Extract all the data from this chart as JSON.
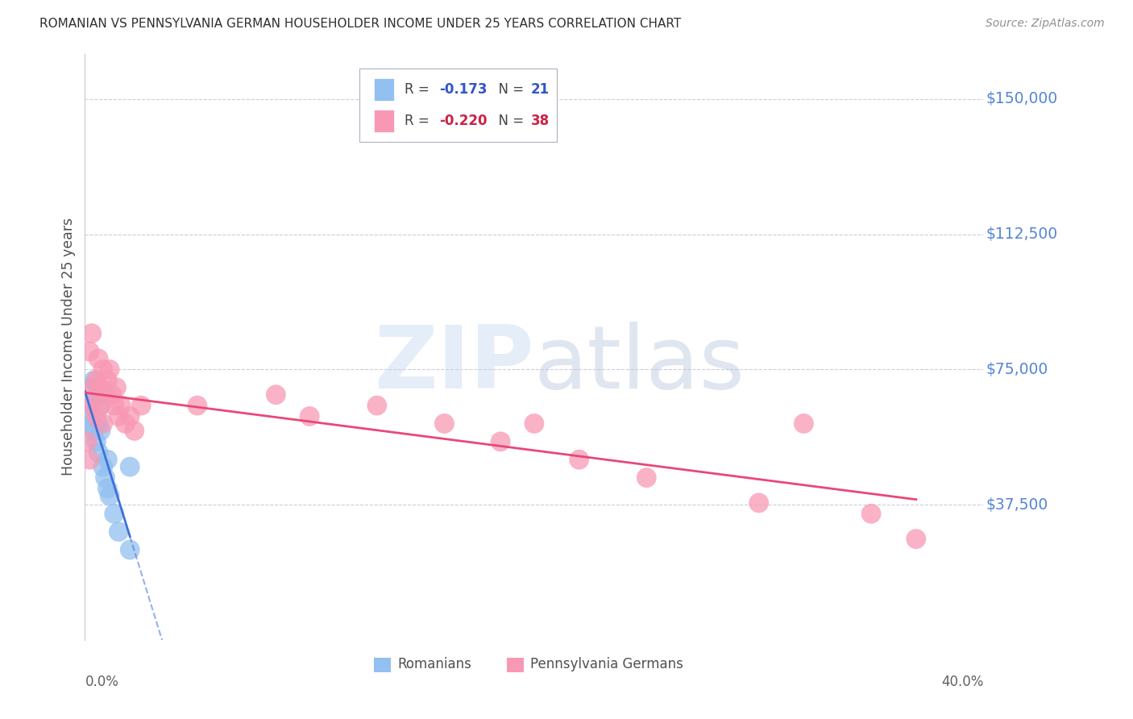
{
  "title": "ROMANIAN VS PENNSYLVANIA GERMAN HOUSEHOLDER INCOME UNDER 25 YEARS CORRELATION CHART",
  "source": "Source: ZipAtlas.com",
  "ylabel": "Householder Income Under 25 years",
  "ytick_labels": [
    "$150,000",
    "$112,500",
    "$75,000",
    "$37,500"
  ],
  "ytick_values": [
    150000,
    112500,
    75000,
    37500
  ],
  "ylim": [
    0,
    162500
  ],
  "xlim": [
    0.0,
    0.4
  ],
  "romanian_color": "#92c0f0",
  "penn_german_color": "#f898b4",
  "romanian_line_color": "#4070d8",
  "penn_german_line_color": "#e84878",
  "background_color": "#ffffff",
  "grid_color": "#ccccdd",
  "title_color": "#303030",
  "axis_label_color": "#505050",
  "ytick_color": "#5585d5",
  "source_color": "#909090",
  "rom_x": [
    0.001,
    0.002,
    0.003,
    0.003,
    0.004,
    0.004,
    0.005,
    0.005,
    0.006,
    0.006,
    0.007,
    0.007,
    0.008,
    0.009,
    0.01,
    0.01,
    0.011,
    0.013,
    0.015,
    0.02,
    0.02
  ],
  "rom_y": [
    62000,
    70000,
    65000,
    60000,
    72000,
    58000,
    67000,
    55000,
    60000,
    52000,
    65000,
    58000,
    48000,
    45000,
    50000,
    42000,
    40000,
    35000,
    30000,
    25000,
    48000
  ],
  "pg_x": [
    0.001,
    0.002,
    0.002,
    0.003,
    0.003,
    0.004,
    0.005,
    0.005,
    0.006,
    0.007,
    0.007,
    0.008,
    0.008,
    0.009,
    0.01,
    0.011,
    0.012,
    0.013,
    0.014,
    0.015,
    0.016,
    0.018,
    0.02,
    0.022,
    0.025,
    0.05,
    0.085,
    0.1,
    0.13,
    0.16,
    0.185,
    0.2,
    0.22,
    0.25,
    0.3,
    0.32,
    0.35,
    0.37
  ],
  "pg_y": [
    55000,
    50000,
    80000,
    85000,
    65000,
    70000,
    72000,
    62000,
    78000,
    70000,
    65000,
    75000,
    60000,
    68000,
    72000,
    75000,
    68000,
    65000,
    70000,
    62000,
    65000,
    60000,
    62000,
    58000,
    65000,
    65000,
    68000,
    62000,
    65000,
    60000,
    55000,
    60000,
    50000,
    45000,
    38000,
    60000,
    35000,
    28000
  ]
}
